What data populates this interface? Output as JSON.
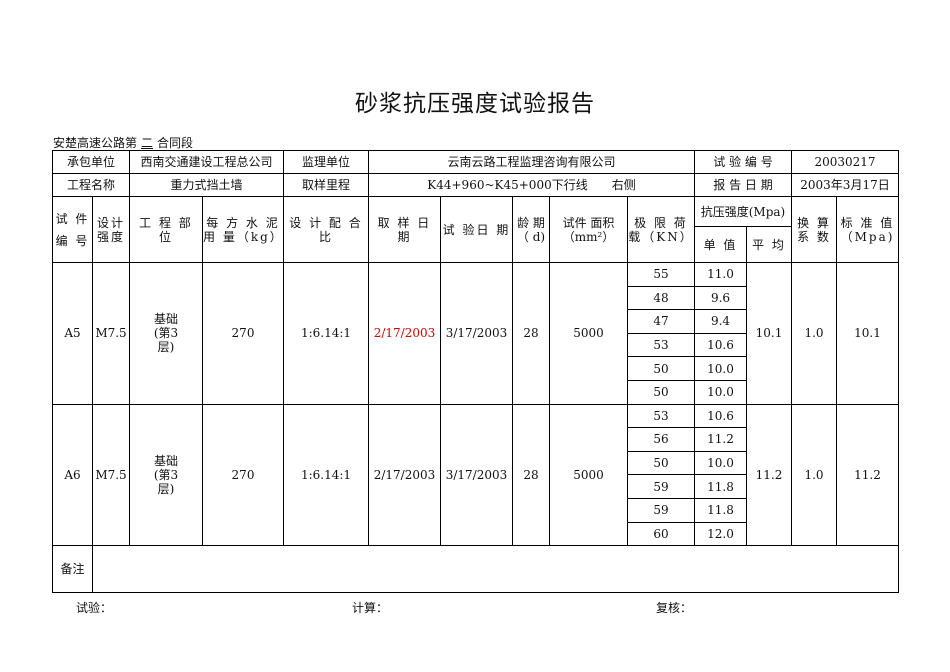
{
  "title": "砂浆抗压强度试验报告",
  "section_prefix": "安楚高速公路第",
  "section_num": "二",
  "section_suffix": "合同段",
  "info": {
    "contractor_label": "承包单位",
    "contractor": "西南交通建设工程总公司",
    "supervisor_label": "监理单位",
    "supervisor": "云南云路工程监理咨询有限公司",
    "test_no_label": "试 验 编 号",
    "test_no": "20030217",
    "project_label": "工程名称",
    "project": "重力式挡土墙",
    "mileage_label": "取样里程",
    "mileage": "K44+960~K45+000下行线　　右侧",
    "report_date_label": "报 告 日 期",
    "report_date": "2003年3月17日"
  },
  "headers": {
    "specimen_no": "试 件 编 号",
    "design_strength": "设计 强度",
    "part": "工 程 部 位",
    "cement": "每 方 水 泥 用 量（kg）",
    "mix": "设 计 配 合 比",
    "sample_date": "取 样 日 期",
    "test_date": "试 验日 期",
    "age": "龄 期（ d)",
    "area": "试件 面积（mm²）",
    "load": "极 限 荷 载（KN）",
    "strength": "抗压强度(Mpa)",
    "single": "单 值",
    "avg": "平 均",
    "factor": "换 算 系 数",
    "std": "标 准 值（Mpa)"
  },
  "groups": [
    {
      "no": "A5",
      "grade": "M7.5",
      "part": "基础(第3层)",
      "cement": "270",
      "mix": "1:6.14:1",
      "sample_date": "2/17/2003",
      "test_date": "3/17/2003",
      "age": "28",
      "area": "5000",
      "loads": [
        "55",
        "48",
        "47",
        "53",
        "50",
        "50"
      ],
      "singles": [
        "11.0",
        "9.6",
        "9.4",
        "10.6",
        "10.0",
        "10.0"
      ],
      "avg": "10.1",
      "factor": "1.0",
      "std": "10.1",
      "sample_date_color": "#dd0000"
    },
    {
      "no": "A6",
      "grade": "M7.5",
      "part": "基础(第3层)",
      "cement": "270",
      "mix": "1:6.14:1",
      "sample_date": "2/17/2003",
      "test_date": "3/17/2003",
      "age": "28",
      "area": "5000",
      "loads": [
        "53",
        "56",
        "50",
        "59",
        "59",
        "60"
      ],
      "singles": [
        "10.6",
        "11.2",
        "10.0",
        "11.8",
        "11.8",
        "12.0"
      ],
      "avg": "11.2",
      "factor": "1.0",
      "std": "11.2"
    }
  ],
  "remarks_label": "备注",
  "remarks": "",
  "footer": {
    "test": "试验：",
    "calc": "计算：",
    "review": "复核："
  }
}
